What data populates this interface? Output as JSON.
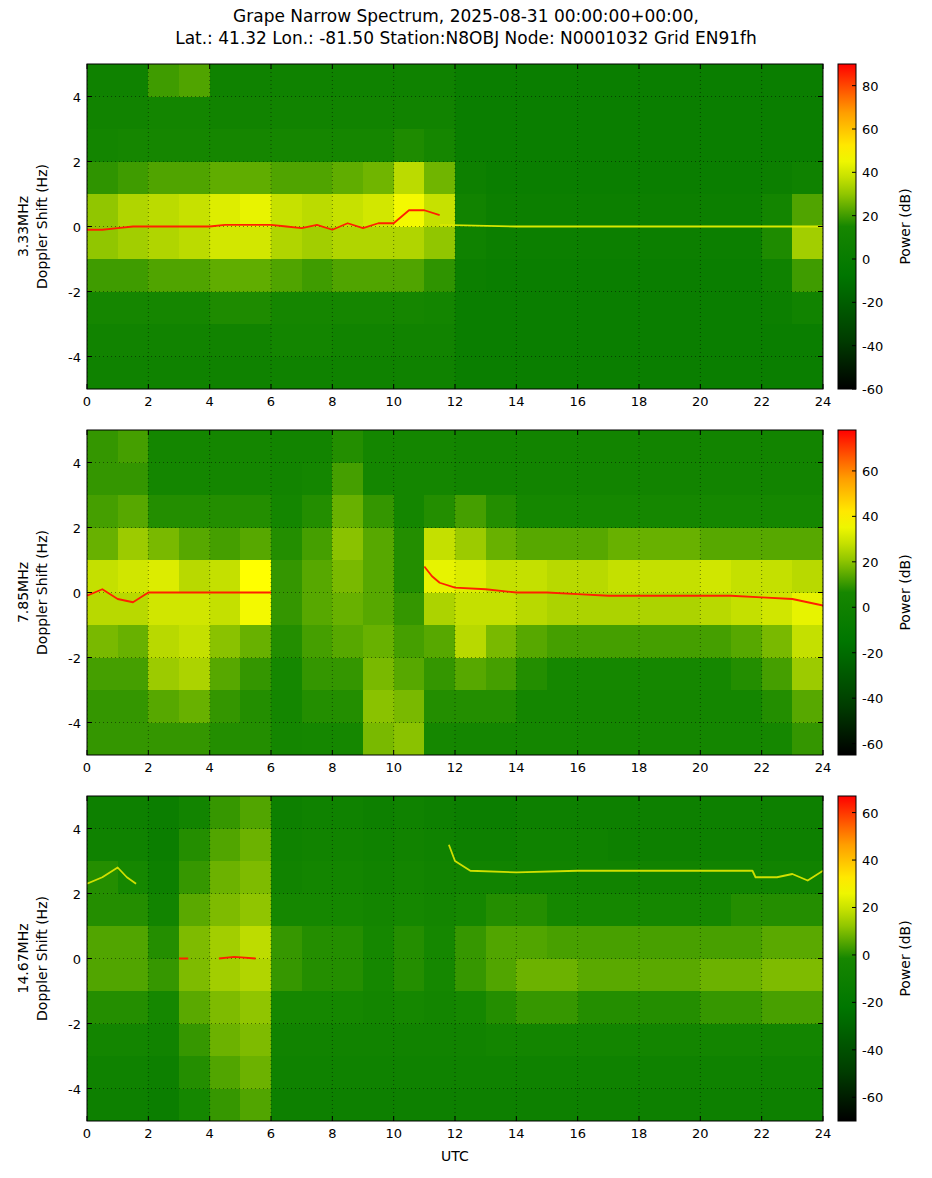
{
  "title": "Grape Narrow Spectrum, 2025-08-31 00:00:00+00:00,\nLat.: 41.32 Lon.: -81.50 Station:N8OBJ Node: N0001032 Grid EN91fh",
  "chart_data": [
    {
      "type": "heatmap",
      "ylabel": "3.33MHz\nDoppler Shift (Hz)",
      "grid": true,
      "xlim": [
        0,
        24
      ],
      "xticks": [
        0,
        2,
        4,
        6,
        8,
        10,
        12,
        14,
        16,
        18,
        20,
        22,
        24
      ],
      "ylim": [
        -5,
        5
      ],
      "yticks": [
        -4,
        -2,
        0,
        2,
        4
      ],
      "x_edges": [
        0,
        1,
        2,
        3,
        4,
        5,
        6,
        7,
        8,
        9,
        10,
        11,
        12,
        13,
        14,
        15,
        16,
        17,
        18,
        19,
        20,
        21,
        22,
        23,
        24
      ],
      "y_edges": [
        5,
        4,
        3,
        2,
        1,
        0,
        -1,
        -2,
        -3,
        -4,
        -5
      ],
      "cells": [
        [
          8,
          8,
          20,
          22,
          8,
          8,
          8,
          8,
          8,
          8,
          8,
          8,
          3,
          3,
          3,
          3,
          3,
          3,
          3,
          3,
          3,
          3,
          3,
          3
        ],
        [
          10,
          10,
          12,
          12,
          10,
          10,
          10,
          10,
          10,
          10,
          10,
          10,
          3,
          3,
          3,
          3,
          3,
          3,
          3,
          3,
          3,
          3,
          3,
          3
        ],
        [
          12,
          14,
          14,
          14,
          14,
          14,
          14,
          14,
          14,
          14,
          16,
          14,
          3,
          3,
          3,
          3,
          3,
          3,
          3,
          3,
          3,
          3,
          3,
          3
        ],
        [
          18,
          20,
          22,
          22,
          24,
          24,
          22,
          22,
          24,
          26,
          36,
          26,
          6,
          3,
          3,
          3,
          3,
          3,
          3,
          3,
          3,
          3,
          5,
          8
        ],
        [
          30,
          34,
          36,
          38,
          42,
          44,
          38,
          36,
          38,
          40,
          46,
          38,
          10,
          5,
          5,
          5,
          5,
          5,
          5,
          5,
          5,
          5,
          12,
          22
        ],
        [
          30,
          32,
          34,
          36,
          40,
          40,
          34,
          32,
          34,
          34,
          34,
          30,
          8,
          5,
          5,
          5,
          5,
          5,
          5,
          5,
          5,
          5,
          16,
          32
        ],
        [
          20,
          20,
          22,
          22,
          24,
          24,
          22,
          20,
          22,
          22,
          22,
          18,
          5,
          3,
          3,
          3,
          3,
          3,
          3,
          3,
          3,
          3,
          8,
          20
        ],
        [
          14,
          14,
          14,
          14,
          16,
          16,
          14,
          14,
          14,
          14,
          14,
          12,
          3,
          3,
          3,
          3,
          3,
          3,
          3,
          3,
          3,
          3,
          5,
          10
        ],
        [
          10,
          10,
          10,
          10,
          10,
          10,
          12,
          12,
          10,
          10,
          10,
          10,
          3,
          3,
          3,
          3,
          3,
          3,
          3,
          3,
          3,
          3,
          3,
          3
        ],
        [
          8,
          8,
          8,
          8,
          8,
          8,
          8,
          8,
          8,
          8,
          8,
          8,
          3,
          3,
          3,
          3,
          3,
          3,
          3,
          3,
          3,
          3,
          3,
          3
        ]
      ],
      "lines": [
        {
          "color": "#ff2000",
          "x": [
            0,
            0.5,
            1,
            1.5,
            2,
            2.5,
            3,
            3.5,
            4,
            4.5,
            5,
            5.5,
            6,
            6.5,
            7,
            7.5,
            8,
            8.5,
            9,
            9.5,
            10,
            10.5,
            11,
            11.5
          ],
          "values": [
            -0.1,
            -0.1,
            -0.05,
            0,
            0,
            0,
            0,
            0,
            0,
            0.05,
            0.05,
            0.05,
            0.05,
            0,
            -0.05,
            0.05,
            -0.1,
            0.1,
            -0.05,
            0.1,
            0.1,
            0.5,
            0.5,
            0.35
          ]
        },
        {
          "color": "#d8e800",
          "x": [
            11.5,
            14,
            16,
            18,
            20,
            22,
            24
          ],
          "values": [
            0.05,
            0,
            0,
            0,
            0,
            0,
            0
          ]
        }
      ],
      "colorbar": {
        "label": "Power (dB)",
        "range": [
          -60,
          90
        ],
        "ticks": [
          -60,
          -40,
          -20,
          0,
          20,
          40,
          60,
          80
        ]
      }
    },
    {
      "type": "heatmap",
      "ylabel": "7.85MHz\nDoppler Shift (Hz)",
      "grid": true,
      "xlim": [
        0,
        24
      ],
      "xticks": [
        0,
        2,
        4,
        6,
        8,
        10,
        12,
        14,
        16,
        18,
        20,
        22,
        24
      ],
      "ylim": [
        -5,
        5
      ],
      "yticks": [
        -4,
        -2,
        0,
        2,
        4
      ],
      "x_edges": [
        0,
        1,
        2,
        3,
        4,
        5,
        6,
        7,
        8,
        9,
        10,
        11,
        12,
        13,
        14,
        15,
        16,
        17,
        18,
        19,
        20,
        21,
        22,
        23,
        24
      ],
      "y_edges": [
        5,
        4,
        3,
        2,
        1,
        0,
        -1,
        -2,
        -3,
        -4,
        -5
      ],
      "cells": [
        [
          10,
          12,
          5,
          5,
          5,
          5,
          3,
          3,
          8,
          5,
          5,
          5,
          3,
          3,
          3,
          3,
          3,
          3,
          3,
          3,
          3,
          3,
          3,
          3
        ],
        [
          10,
          10,
          5,
          5,
          5,
          5,
          3,
          5,
          12,
          5,
          5,
          5,
          3,
          3,
          3,
          3,
          3,
          3,
          3,
          3,
          3,
          3,
          3,
          3
        ],
        [
          12,
          14,
          8,
          8,
          8,
          8,
          5,
          8,
          16,
          10,
          5,
          8,
          12,
          8,
          6,
          6,
          6,
          6,
          6,
          6,
          6,
          6,
          6,
          6
        ],
        [
          16,
          22,
          18,
          14,
          12,
          14,
          8,
          12,
          20,
          14,
          8,
          28,
          22,
          16,
          14,
          14,
          14,
          16,
          16,
          16,
          14,
          14,
          14,
          14
        ],
        [
          28,
          30,
          32,
          26,
          28,
          38,
          10,
          14,
          18,
          14,
          8,
          34,
          32,
          28,
          28,
          26,
          26,
          28,
          28,
          28,
          30,
          28,
          28,
          26
        ],
        [
          26,
          26,
          30,
          30,
          28,
          36,
          10,
          14,
          16,
          14,
          10,
          24,
          28,
          28,
          26,
          24,
          24,
          24,
          24,
          24,
          26,
          28,
          30,
          34
        ],
        [
          18,
          16,
          26,
          28,
          20,
          16,
          8,
          12,
          14,
          16,
          12,
          14,
          26,
          18,
          14,
          12,
          12,
          12,
          12,
          12,
          12,
          14,
          18,
          28
        ],
        [
          12,
          12,
          22,
          24,
          14,
          10,
          6,
          10,
          10,
          18,
          14,
          10,
          14,
          12,
          8,
          6,
          6,
          6,
          6,
          6,
          6,
          8,
          12,
          22
        ],
        [
          10,
          10,
          14,
          16,
          10,
          8,
          5,
          8,
          8,
          20,
          18,
          8,
          8,
          8,
          5,
          5,
          5,
          5,
          5,
          5,
          5,
          5,
          8,
          14
        ],
        [
          10,
          10,
          10,
          10,
          8,
          8,
          5,
          6,
          6,
          18,
          20,
          6,
          5,
          5,
          5,
          5,
          5,
          5,
          5,
          5,
          5,
          5,
          6,
          10
        ]
      ],
      "lines": [
        {
          "color": "#ff2000",
          "x": [
            0,
            0.5,
            1,
            1.5,
            2,
            3,
            4,
            5,
            6
          ],
          "values": [
            -0.1,
            0.1,
            -0.2,
            -0.3,
            0,
            0,
            0,
            0,
            0
          ]
        },
        {
          "color": "#ff2000",
          "x": [
            11,
            11.25,
            11.5,
            12,
            13,
            14,
            15,
            16,
            17,
            18,
            19,
            20,
            21,
            22,
            23,
            23.5,
            24
          ],
          "values": [
            0.8,
            0.5,
            0.3,
            0.15,
            0.1,
            0,
            0,
            -0.05,
            -0.1,
            -0.1,
            -0.1,
            -0.1,
            -0.1,
            -0.15,
            -0.2,
            -0.3,
            -0.4
          ]
        }
      ],
      "colorbar": {
        "label": "Power (dB)",
        "range": [
          -65,
          78
        ],
        "ticks": [
          -60,
          -40,
          -20,
          0,
          20,
          40,
          60
        ]
      }
    },
    {
      "type": "heatmap",
      "ylabel": "14.67MHz\nDoppler Shift (Hz)",
      "xlabel": "UTC",
      "grid": true,
      "xlim": [
        0,
        24
      ],
      "xticks": [
        0,
        2,
        4,
        6,
        8,
        10,
        12,
        14,
        16,
        18,
        20,
        22,
        24
      ],
      "ylim": [
        -5,
        5
      ],
      "yticks": [
        -4,
        -2,
        0,
        2,
        4
      ],
      "x_edges": [
        0,
        1,
        2,
        3,
        4,
        5,
        6,
        7,
        8,
        9,
        10,
        11,
        12,
        13,
        14,
        15,
        16,
        17,
        18,
        19,
        20,
        21,
        22,
        23,
        24
      ],
      "y_edges": [
        5,
        4,
        3,
        2,
        1,
        0,
        -1,
        -2,
        -3,
        -4,
        -5
      ],
      "cells": [
        [
          -10,
          -10,
          -12,
          -5,
          2,
          5,
          -10,
          -8,
          -8,
          -10,
          -8,
          -10,
          -12,
          -12,
          -10,
          -10,
          -10,
          -10,
          -10,
          -10,
          -10,
          -10,
          -10,
          -10
        ],
        [
          -8,
          -8,
          -12,
          0,
          5,
          8,
          -8,
          -6,
          -6,
          -8,
          -6,
          -8,
          -10,
          -10,
          -8,
          -8,
          -8,
          -10,
          -10,
          -10,
          -10,
          -10,
          -10,
          -10
        ],
        [
          0,
          -2,
          -10,
          2,
          8,
          10,
          -6,
          -4,
          -4,
          -6,
          -4,
          -6,
          -6,
          -6,
          -6,
          -6,
          -6,
          -6,
          -6,
          -6,
          -6,
          -6,
          -6,
          -6
        ],
        [
          0,
          0,
          -5,
          6,
          10,
          12,
          -2,
          -2,
          -2,
          -4,
          -2,
          -4,
          -2,
          0,
          0,
          -2,
          -2,
          -2,
          -2,
          -2,
          -2,
          0,
          0,
          0
        ],
        [
          5,
          5,
          0,
          10,
          14,
          18,
          2,
          0,
          0,
          -2,
          0,
          -2,
          2,
          5,
          5,
          4,
          4,
          4,
          4,
          4,
          4,
          4,
          6,
          6
        ],
        [
          5,
          5,
          2,
          10,
          14,
          16,
          2,
          0,
          0,
          -2,
          0,
          -2,
          2,
          5,
          8,
          8,
          6,
          6,
          6,
          6,
          8,
          8,
          10,
          10
        ],
        [
          0,
          0,
          -2,
          6,
          10,
          12,
          -2,
          -2,
          -2,
          -4,
          -2,
          -4,
          -2,
          0,
          2,
          2,
          0,
          0,
          0,
          0,
          2,
          2,
          4,
          4
        ],
        [
          -4,
          -4,
          -6,
          2,
          8,
          10,
          -6,
          -6,
          -6,
          -6,
          -6,
          -6,
          -6,
          -4,
          -4,
          -4,
          -4,
          -4,
          -4,
          -4,
          -4,
          -4,
          -4,
          -4
        ],
        [
          -8,
          -8,
          -10,
          0,
          5,
          8,
          -8,
          -8,
          -8,
          -8,
          -8,
          -8,
          -8,
          -8,
          -8,
          -8,
          -8,
          -8,
          -8,
          -8,
          -8,
          -8,
          -8,
          -8
        ],
        [
          -10,
          -10,
          -12,
          -2,
          2,
          5,
          -10,
          -10,
          -10,
          -10,
          -10,
          -10,
          -10,
          -10,
          -10,
          -10,
          -10,
          -10,
          -10,
          -10,
          -10,
          -10,
          -10,
          -10
        ]
      ],
      "lines": [
        {
          "color": "#ff2000",
          "x": [
            3,
            3.3,
            3.4,
            4.3,
            4.8,
            5.5
          ],
          "values": [
            0,
            0,
            null,
            0,
            0.05,
            0
          ]
        },
        {
          "color": "#d0e000",
          "x": [
            0,
            0.5,
            1,
            1.3,
            1.6,
            6,
            11.8,
            12,
            12.5,
            14,
            16,
            18,
            20,
            21.7,
            21.8,
            22.5,
            23,
            23.5,
            24
          ],
          "values": [
            2.3,
            2.5,
            2.8,
            2.5,
            2.3,
            null,
            3.5,
            3.0,
            2.7,
            2.65,
            2.7,
            2.7,
            2.7,
            2.7,
            2.5,
            2.5,
            2.6,
            2.4,
            2.7
          ]
        }
      ],
      "colorbar": {
        "label": "Power (dB)",
        "range": [
          -70,
          67
        ],
        "ticks": [
          -60,
          -40,
          -20,
          0,
          20,
          40,
          60
        ]
      }
    }
  ]
}
